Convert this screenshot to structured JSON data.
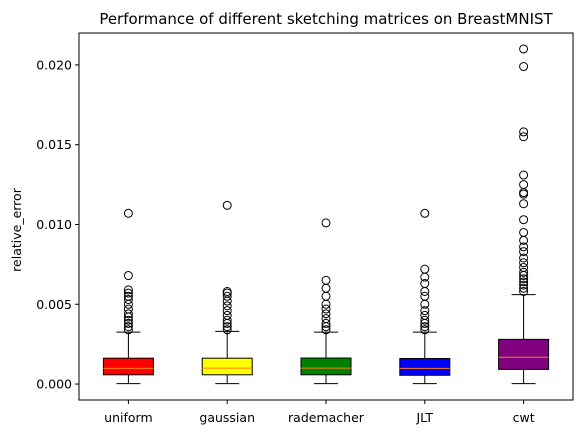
{
  "chart_data": {
    "type": "box",
    "title": "Performance of different sketching matrices on BreastMNIST",
    "xlabel": "",
    "ylabel": "relative_error",
    "ylim": [
      -0.001,
      0.022
    ],
    "yticks": [
      0.0,
      0.005,
      0.01,
      0.015,
      0.02
    ],
    "ytick_labels": [
      "0.000",
      "0.005",
      "0.010",
      "0.015",
      "0.020"
    ],
    "grid": false,
    "categories": [
      "uniform",
      "gaussian",
      "rademacher",
      "JLT",
      "cwt"
    ],
    "series": [
      {
        "category": "uniform",
        "color": "#ff0000",
        "median_color": "#ff7f0e",
        "whisker_low": 3e-05,
        "q1": 0.00058,
        "median": 0.00098,
        "q3": 0.00162,
        "whisker_high": 0.00325,
        "outliers": [
          0.0034,
          0.0036,
          0.0038,
          0.004,
          0.0042,
          0.0044,
          0.0047,
          0.005,
          0.0053,
          0.0055,
          0.0057,
          0.0059,
          0.0068,
          0.0107
        ]
      },
      {
        "category": "gaussian",
        "color": "#ffff00",
        "median_color": "#ff7f0e",
        "whisker_low": 3e-05,
        "q1": 0.00058,
        "median": 0.001,
        "q3": 0.00162,
        "whisker_high": 0.0033,
        "outliers": [
          0.0034,
          0.0036,
          0.0038,
          0.004,
          0.0043,
          0.0046,
          0.0049,
          0.0052,
          0.0055,
          0.0057,
          0.0058,
          0.0112
        ]
      },
      {
        "category": "rademacher",
        "color": "#008000",
        "median_color": "#ff7f0e",
        "whisker_low": 3e-05,
        "q1": 0.00058,
        "median": 0.001,
        "q3": 0.00163,
        "whisker_high": 0.00325,
        "outliers": [
          0.0034,
          0.0036,
          0.0038,
          0.0041,
          0.0044,
          0.0047,
          0.005,
          0.0055,
          0.006,
          0.0065,
          0.0101
        ]
      },
      {
        "category": "JLT",
        "color": "#0000ff",
        "median_color": "#ff7f0e",
        "whisker_low": 3e-05,
        "q1": 0.00055,
        "median": 0.00098,
        "q3": 0.0016,
        "whisker_high": 0.00325,
        "outliers": [
          0.0034,
          0.0036,
          0.0038,
          0.004,
          0.0043,
          0.0046,
          0.005,
          0.0055,
          0.0058,
          0.0063,
          0.0067,
          0.0072,
          0.0107
        ]
      },
      {
        "category": "cwt",
        "color": "#800080",
        "median_color": "#ff7f0e",
        "whisker_low": 3e-05,
        "q1": 0.00092,
        "median": 0.00168,
        "q3": 0.0028,
        "whisker_high": 0.0056,
        "outliers": [
          0.0058,
          0.006,
          0.0062,
          0.0064,
          0.0066,
          0.0068,
          0.007,
          0.0073,
          0.0076,
          0.0079,
          0.0083,
          0.0086,
          0.009,
          0.0095,
          0.0103,
          0.0113,
          0.0119,
          0.012,
          0.0125,
          0.0131,
          0.0155,
          0.0158,
          0.0199,
          0.021
        ]
      }
    ]
  }
}
